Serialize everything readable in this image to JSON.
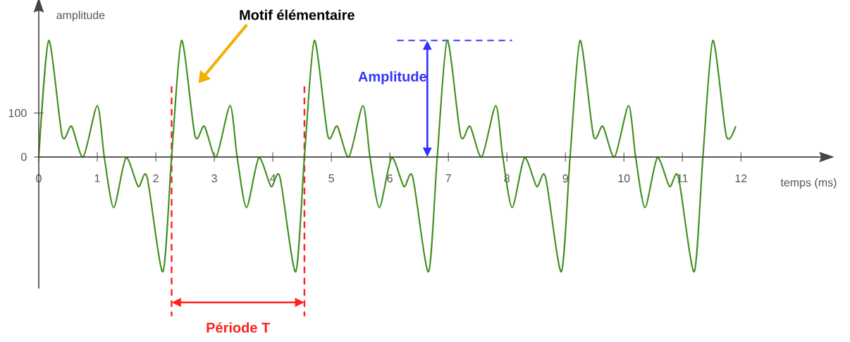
{
  "chart_data": {
    "type": "line",
    "xlabel": "temps (ms)",
    "ylabel": "amplitude",
    "x": [
      0,
      0.17,
      0.4,
      0.56,
      0.76,
      1.0,
      1.12,
      1.28,
      1.49,
      1.7,
      1.85,
      2.12,
      2.27,
      2.44,
      2.67,
      2.83,
      3.03,
      3.27,
      3.39,
      3.55,
      3.76,
      3.97,
      4.12,
      4.39,
      4.54,
      4.71,
      4.94,
      5.1,
      5.3,
      5.54,
      5.66,
      5.82,
      6.03,
      6.24,
      6.39,
      6.66,
      6.81,
      6.98,
      7.21,
      7.37,
      7.57,
      7.81,
      7.93,
      8.09,
      8.3,
      8.51,
      8.66,
      8.93,
      9.08,
      9.25,
      9.48,
      9.64,
      9.84,
      10.08,
      10.2,
      10.36,
      10.57,
      10.78,
      10.93,
      11.2,
      11.35,
      11.52,
      11.75,
      11.91
    ],
    "series": [
      {
        "color": "#3f8f1f",
        "values": [
          0,
          265,
          48,
          70,
          0,
          117,
          0,
          -115,
          -2,
          -67,
          -45,
          -261,
          0,
          265,
          48,
          70,
          0,
          117,
          0,
          -115,
          -2,
          -67,
          -45,
          -261,
          0,
          265,
          48,
          70,
          0,
          117,
          0,
          -115,
          -2,
          -67,
          -45,
          -261,
          0,
          265,
          48,
          70,
          0,
          117,
          0,
          -115,
          -2,
          -67,
          -45,
          -261,
          0,
          265,
          48,
          70,
          0,
          117,
          0,
          -115,
          -2,
          -67,
          -45,
          -261,
          0,
          265,
          48,
          70
        ]
      }
    ],
    "xlim": [
      0,
      13.37
    ],
    "ylim": [
      -299,
      333
    ],
    "xticks": [
      0,
      1,
      2,
      3,
      4,
      5,
      6,
      7,
      8,
      9,
      10,
      11,
      12
    ],
    "yticks": [
      0,
      100
    ],
    "ref_lines": [
      {
        "axis": "x",
        "value": 2.27,
        "color": "#ff2020",
        "line_style": "dashed"
      },
      {
        "axis": "x",
        "value": 4.54,
        "color": "#ff2020",
        "line_style": "dashed"
      },
      {
        "axis": "y",
        "value": 265,
        "color": "#3333ff",
        "line_style": "dashed"
      }
    ],
    "annotations": [
      "Motif élémentaire",
      {
        "text": "Amplitude",
        "x": 6.64,
        "y": 265
      },
      "Période T"
    ],
    "marker": "none",
    "line_style": "solid",
    "grid": false
  }
}
